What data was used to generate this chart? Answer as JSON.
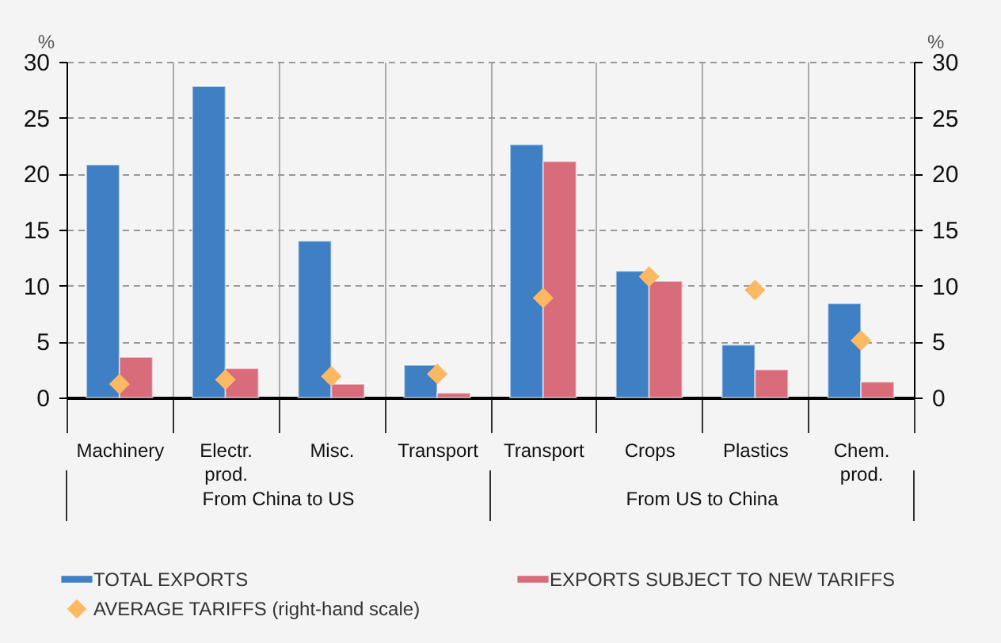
{
  "chart_data": {
    "type": "bar",
    "ylabel": "%",
    "y2label": "%",
    "categories": [
      "Machinery",
      "Electr. prod.",
      "Misc.",
      "Transport",
      "Transport",
      "Crops",
      "Plastics",
      "Chem. prod."
    ],
    "series": [
      {
        "name": "TOTAL EXPORTS",
        "color": "#3f7fc4",
        "values": [
          20.8,
          27.8,
          14.0,
          2.9,
          22.6,
          11.3,
          4.7,
          8.4
        ]
      },
      {
        "name": "EXPORTS SUBJECT TO NEW TARIFFS",
        "color": "#d96c7a",
        "values": [
          3.6,
          2.6,
          1.2,
          0.4,
          21.1,
          10.4,
          2.5,
          1.4
        ]
      },
      {
        "name": "AVERAGE TARIFFS (right-hand scale)",
        "type": "scatter",
        "axis": "y2",
        "color": "#fdb863",
        "values": [
          1.2,
          1.6,
          1.9,
          2.1,
          8.9,
          10.8,
          9.6,
          5.1
        ]
      }
    ],
    "ylim": [
      0,
      30
    ],
    "yticks": [
      0,
      5,
      10,
      15,
      20,
      25,
      30
    ],
    "y2lim": [
      0,
      30
    ],
    "y2ticks": [
      0,
      5,
      10,
      15,
      20,
      25,
      30
    ],
    "grid": "y",
    "legend": "bottom",
    "marker": "diamond",
    "annotations": [
      "From China to US",
      "From US to China"
    ]
  }
}
